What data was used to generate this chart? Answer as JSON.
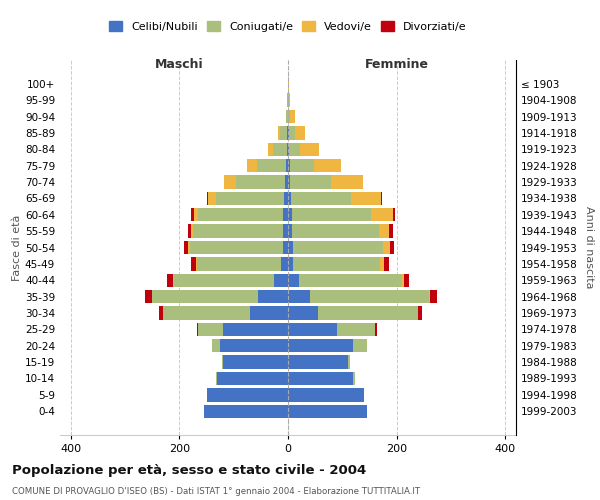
{
  "age_groups": [
    "0-4",
    "5-9",
    "10-14",
    "15-19",
    "20-24",
    "25-29",
    "30-34",
    "35-39",
    "40-44",
    "45-49",
    "50-54",
    "55-59",
    "60-64",
    "65-69",
    "70-74",
    "75-79",
    "80-84",
    "85-89",
    "90-94",
    "95-99",
    "100+"
  ],
  "birth_years": [
    "1999-2003",
    "1994-1998",
    "1989-1993",
    "1984-1988",
    "1979-1983",
    "1974-1978",
    "1969-1973",
    "1964-1968",
    "1959-1963",
    "1954-1958",
    "1949-1953",
    "1944-1948",
    "1939-1943",
    "1934-1938",
    "1929-1933",
    "1924-1928",
    "1919-1923",
    "1914-1918",
    "1909-1913",
    "1904-1908",
    "≤ 1903"
  ],
  "male": {
    "celibi": [
      155,
      150,
      130,
      120,
      125,
      120,
      70,
      55,
      25,
      12,
      10,
      10,
      10,
      8,
      5,
      3,
      2,
      2,
      0,
      0,
      0
    ],
    "coniugati": [
      0,
      0,
      2,
      2,
      15,
      45,
      160,
      195,
      185,
      155,
      170,
      165,
      155,
      125,
      90,
      55,
      25,
      12,
      3,
      1,
      0
    ],
    "vedovi": [
      0,
      0,
      0,
      0,
      0,
      0,
      0,
      1,
      2,
      3,
      4,
      4,
      8,
      15,
      22,
      18,
      10,
      4,
      1,
      0,
      0
    ],
    "divorziati": [
      0,
      0,
      0,
      0,
      0,
      3,
      8,
      12,
      10,
      8,
      7,
      6,
      5,
      2,
      0,
      0,
      0,
      0,
      0,
      0,
      0
    ]
  },
  "female": {
    "nubili": [
      145,
      140,
      120,
      110,
      120,
      90,
      55,
      40,
      20,
      10,
      10,
      8,
      8,
      6,
      4,
      3,
      2,
      2,
      0,
      0,
      0
    ],
    "coniugate": [
      0,
      0,
      3,
      4,
      25,
      70,
      185,
      220,
      190,
      160,
      165,
      160,
      145,
      110,
      75,
      45,
      20,
      10,
      4,
      1,
      0
    ],
    "vedove": [
      0,
      0,
      0,
      0,
      0,
      0,
      0,
      2,
      4,
      6,
      12,
      18,
      40,
      55,
      60,
      50,
      35,
      20,
      8,
      2,
      1
    ],
    "divorziate": [
      0,
      0,
      0,
      0,
      0,
      4,
      6,
      12,
      8,
      10,
      8,
      8,
      5,
      2,
      0,
      0,
      0,
      0,
      0,
      0,
      0
    ]
  },
  "colors": {
    "celibi": "#4472C4",
    "coniugati": "#AABF7E",
    "vedovi": "#F0B642",
    "divorziati": "#C0000C"
  },
  "xlim": 420,
  "title": "Popolazione per età, sesso e stato civile - 2004",
  "subtitle": "COMUNE DI PROVAGLIO D'ISEO (BS) - Dati ISTAT 1° gennaio 2004 - Elaborazione TUTTITALIA.IT",
  "ylabel_left": "Fasce di età",
  "ylabel_right": "Anni di nascita",
  "legend_labels": [
    "Celibi/Nubili",
    "Coniugati/e",
    "Vedovi/e",
    "Divorziati/e"
  ],
  "maschi_label": "Maschi",
  "femmine_label": "Femmine"
}
